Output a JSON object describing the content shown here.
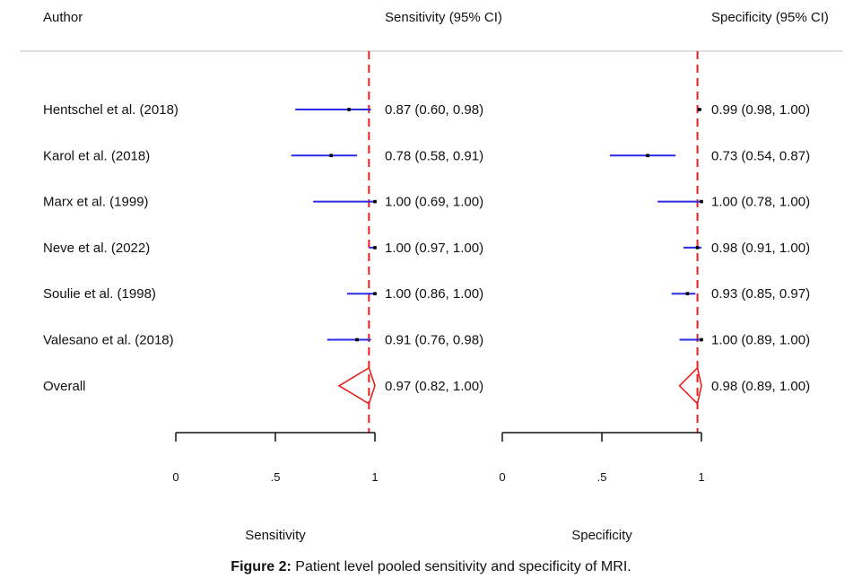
{
  "chart_data": {
    "type": "forest",
    "headers": {
      "author": "Author",
      "sensitivity": "Sensitivity (95% CI)",
      "specificity": "Specificity (95% CI)"
    },
    "studies": [
      {
        "author": "Hentschel et al. (2018)",
        "sensitivity": {
          "est": 0.87,
          "lo": 0.6,
          "hi": 0.98,
          "label": "0.87 (0.60, 0.98)"
        },
        "specificity": {
          "est": 0.99,
          "lo": 0.98,
          "hi": 1.0,
          "label": "0.99 (0.98, 1.00)"
        }
      },
      {
        "author": "Karol et al. (2018)",
        "sensitivity": {
          "est": 0.78,
          "lo": 0.58,
          "hi": 0.91,
          "label": "0.78 (0.58, 0.91)"
        },
        "specificity": {
          "est": 0.73,
          "lo": 0.54,
          "hi": 0.87,
          "label": "0.73 (0.54, 0.87)"
        }
      },
      {
        "author": "Marx et al. (1999)",
        "sensitivity": {
          "est": 1.0,
          "lo": 0.69,
          "hi": 1.0,
          "label": "1.00 (0.69, 1.00)"
        },
        "specificity": {
          "est": 1.0,
          "lo": 0.78,
          "hi": 1.0,
          "label": "1.00 (0.78, 1.00)"
        }
      },
      {
        "author": "Neve et al.  (2022)",
        "sensitivity": {
          "est": 1.0,
          "lo": 0.97,
          "hi": 1.0,
          "label": "1.00 (0.97, 1.00)"
        },
        "specificity": {
          "est": 0.98,
          "lo": 0.91,
          "hi": 1.0,
          "label": "0.98 (0.91, 1.00)"
        }
      },
      {
        "author": "Soulie et al. (1998)",
        "sensitivity": {
          "est": 1.0,
          "lo": 0.86,
          "hi": 1.0,
          "label": "1.00 (0.86, 1.00)"
        },
        "specificity": {
          "est": 0.93,
          "lo": 0.85,
          "hi": 0.97,
          "label": "0.93 (0.85, 0.97)"
        }
      },
      {
        "author": "Valesano et al. (2018)",
        "sensitivity": {
          "est": 0.91,
          "lo": 0.76,
          "hi": 0.98,
          "label": "0.91 (0.76, 0.98)"
        },
        "specificity": {
          "est": 1.0,
          "lo": 0.89,
          "hi": 1.0,
          "label": "1.00 (0.89, 1.00)"
        }
      }
    ],
    "overall": {
      "author": "Overall",
      "sensitivity": {
        "est": 0.97,
        "lo": 0.82,
        "hi": 1.0,
        "label": "0.97 (0.82, 1.00)"
      },
      "specificity": {
        "est": 0.98,
        "lo": 0.89,
        "hi": 1.0,
        "label": "0.98 (0.89, 1.00)"
      }
    },
    "xlim": [
      0,
      1
    ],
    "ticks": [
      0,
      0.5,
      1
    ],
    "tick_labels": [
      "0",
      ".5",
      "1"
    ],
    "xlabels": {
      "sensitivity": "Sensitivity",
      "specificity": "Specificity"
    },
    "colors": {
      "ci": "#2a2ae8",
      "pooled": "#e8211e",
      "point": "#000000"
    }
  },
  "caption": {
    "prefix": "Figure 2:",
    "text": " Patient level pooled sensitivity and specificity of MRI."
  }
}
